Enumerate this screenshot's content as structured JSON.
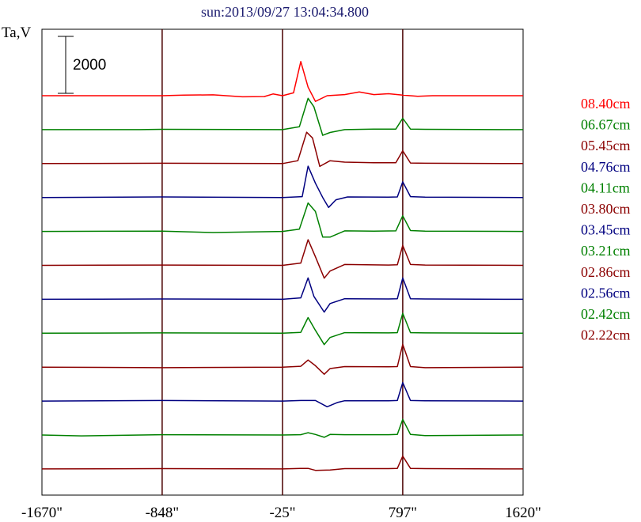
{
  "chart_data": {
    "type": "line",
    "title": "sun:2013/09/27 13:04:34.800",
    "ylabel": "Ta,V",
    "scale_bar_label": "2000",
    "scale_bar_value": 2000,
    "x_ticks": [
      {
        "value": -1670,
        "label": "-1670\""
      },
      {
        "value": -848,
        "label": "-848\""
      },
      {
        "value": -25,
        "label": "-25\""
      },
      {
        "value": 797,
        "label": "797\""
      },
      {
        "value": 1620,
        "label": "1620\""
      }
    ],
    "xlim": [
      -1670,
      1620
    ],
    "vertical_lines": [
      -848,
      -25,
      797
    ],
    "colors": {
      "red": "#ff0000",
      "green": "#008000",
      "maroon": "#8b0000",
      "navy": "#000080",
      "vline": "#4a0000"
    },
    "series": [
      {
        "name": "08.40cm",
        "color": "#ff0000",
        "x": [
          -1670,
          -848,
          -700,
          -500,
          -300,
          -150,
          -90,
          -25,
          50,
          100,
          150,
          200,
          280,
          400,
          500,
          600,
          700,
          797,
          900,
          1000,
          1620
        ],
        "y": [
          0,
          0,
          20,
          30,
          -40,
          -30,
          60,
          0,
          100,
          1200,
          300,
          -200,
          0,
          40,
          130,
          40,
          70,
          20,
          -20,
          0,
          0
        ]
      },
      {
        "name": "06.67cm",
        "color": "#008000",
        "x": [
          -1670,
          -1000,
          -848,
          -25,
          90,
          150,
          190,
          250,
          300,
          400,
          600,
          750,
          797,
          850,
          950,
          1620
        ],
        "y": [
          0,
          0,
          10,
          0,
          100,
          1100,
          800,
          -200,
          -100,
          0,
          20,
          20,
          400,
          20,
          10,
          0
        ]
      },
      {
        "name": "05.45cm",
        "color": "#8b0000",
        "x": [
          -1670,
          -848,
          -25,
          80,
          140,
          180,
          230,
          300,
          400,
          600,
          750,
          797,
          850,
          950,
          1620
        ],
        "y": [
          0,
          10,
          0,
          100,
          1100,
          900,
          -100,
          100,
          50,
          30,
          30,
          450,
          20,
          10,
          0
        ]
      },
      {
        "name": "04.76cm",
        "color": "#000080",
        "x": [
          -1670,
          -848,
          -25,
          110,
          150,
          200,
          250,
          290,
          340,
          420,
          700,
          760,
          797,
          850,
          950,
          1620
        ],
        "y": [
          0,
          20,
          0,
          30,
          1100,
          500,
          0,
          -350,
          -80,
          20,
          10,
          20,
          550,
          30,
          10,
          0
        ]
      },
      {
        "name": "04.11cm",
        "color": "#008000",
        "x": [
          -1670,
          -848,
          -500,
          -25,
          90,
          150,
          200,
          250,
          300,
          400,
          600,
          750,
          797,
          850,
          950,
          1620
        ],
        "y": [
          0,
          10,
          -40,
          0,
          80,
          1000,
          700,
          -200,
          -200,
          20,
          10,
          20,
          550,
          30,
          10,
          0
        ]
      },
      {
        "name": "03.80cm",
        "color": "#8b0000",
        "x": [
          -1670,
          -848,
          -25,
          100,
          150,
          200,
          260,
          300,
          400,
          700,
          760,
          797,
          850,
          950,
          1620
        ],
        "y": [
          0,
          10,
          0,
          80,
          900,
          300,
          -450,
          -200,
          30,
          10,
          20,
          700,
          30,
          10,
          0
        ]
      },
      {
        "name": "03.45cm",
        "color": "#000080",
        "x": [
          -1670,
          -848,
          -25,
          100,
          150,
          190,
          260,
          300,
          400,
          700,
          760,
          797,
          850,
          950,
          1620
        ],
        "y": [
          0,
          10,
          0,
          50,
          750,
          100,
          -450,
          -150,
          20,
          10,
          20,
          750,
          20,
          10,
          0
        ]
      },
      {
        "name": "03.21cm",
        "color": "#008000",
        "x": [
          -1670,
          -848,
          -25,
          100,
          150,
          200,
          260,
          300,
          400,
          700,
          760,
          797,
          850,
          950,
          1620
        ],
        "y": [
          0,
          10,
          0,
          30,
          550,
          100,
          -400,
          -150,
          20,
          10,
          20,
          700,
          20,
          10,
          0
        ]
      },
      {
        "name": "02.86cm",
        "color": "#8b0000",
        "x": [
          -1670,
          -848,
          -25,
          100,
          150,
          200,
          260,
          300,
          400,
          700,
          760,
          797,
          850,
          950,
          1620
        ],
        "y": [
          0,
          -20,
          0,
          30,
          250,
          50,
          -250,
          -50,
          20,
          10,
          20,
          800,
          20,
          -20,
          0
        ]
      },
      {
        "name": "02.56cm",
        "color": "#000080",
        "x": [
          -1670,
          -848,
          -25,
          100,
          200,
          280,
          350,
          400,
          700,
          760,
          797,
          850,
          950,
          1620
        ],
        "y": [
          0,
          20,
          0,
          20,
          20,
          -200,
          -50,
          10,
          10,
          20,
          650,
          20,
          10,
          0
        ]
      },
      {
        "name": "02.42cm",
        "color": "#008000",
        "x": [
          -1670,
          -1400,
          -848,
          -25,
          100,
          150,
          200,
          260,
          300,
          400,
          700,
          760,
          797,
          850,
          950,
          1620
        ],
        "y": [
          0,
          -30,
          10,
          0,
          10,
          80,
          20,
          -80,
          20,
          10,
          10,
          20,
          550,
          20,
          -20,
          0
        ]
      },
      {
        "name": "02.22cm",
        "color": "#8b0000",
        "x": [
          -1670,
          -848,
          -25,
          100,
          150,
          200,
          300,
          400,
          700,
          760,
          797,
          850,
          950,
          1620
        ],
        "y": [
          0,
          10,
          0,
          20,
          20,
          -50,
          -40,
          10,
          10,
          20,
          450,
          20,
          10,
          0
        ]
      }
    ]
  }
}
